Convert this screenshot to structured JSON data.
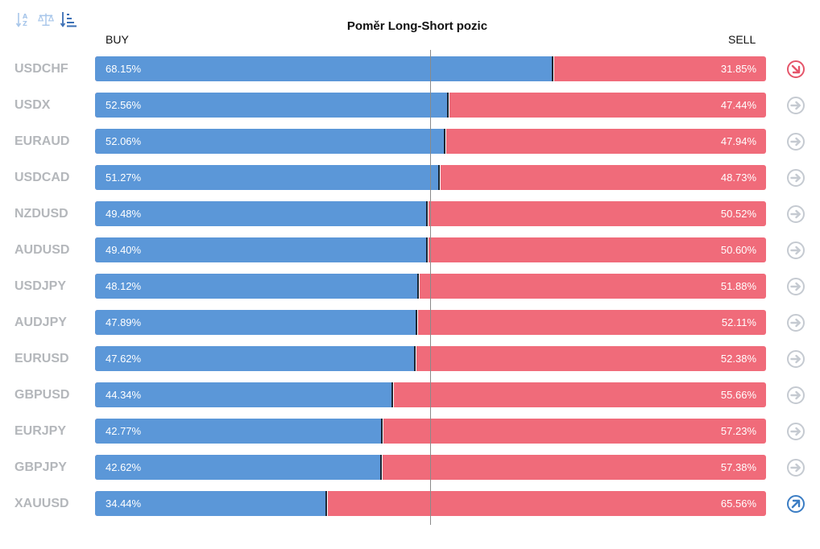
{
  "title": "Poměr Long-Short pozic",
  "labels": {
    "buy": "BUY",
    "sell": "SELL"
  },
  "toolbar": [
    {
      "name": "sort-alpha-icon"
    },
    {
      "name": "balance-icon"
    },
    {
      "name": "sort-amount-icon"
    }
  ],
  "colors": {
    "buy": "#5b97d8",
    "sell": "#f06b7a",
    "neutral": "#c5cad1",
    "down": "#e5556a",
    "up": "#3b7dc4"
  },
  "chart_data": {
    "type": "bar",
    "orientation": "horizontal",
    "stacked": true,
    "categories": [
      "USDCHF",
      "USDX",
      "EURAUD",
      "USDCAD",
      "NZDUSD",
      "AUDUSD",
      "USDJPY",
      "AUDJPY",
      "EURUSD",
      "GBPUSD",
      "EURJPY",
      "GBPJPY",
      "XAUUSD"
    ],
    "series": [
      {
        "name": "BUY",
        "values": [
          68.15,
          52.56,
          52.06,
          51.27,
          49.48,
          49.4,
          48.12,
          47.89,
          47.62,
          44.34,
          42.77,
          42.62,
          34.44
        ]
      },
      {
        "name": "SELL",
        "values": [
          31.85,
          47.44,
          47.94,
          48.73,
          50.52,
          50.6,
          51.88,
          52.11,
          52.38,
          55.66,
          57.23,
          57.38,
          65.56
        ]
      }
    ],
    "buy_labels": [
      "68.15%",
      "52.56%",
      "52.06%",
      "51.27%",
      "49.48%",
      "49.40%",
      "48.12%",
      "47.89%",
      "47.62%",
      "44.34%",
      "42.77%",
      "42.62%",
      "34.44%"
    ],
    "sell_labels": [
      "31.85%",
      "47.44%",
      "47.94%",
      "48.73%",
      "50.52%",
      "50.60%",
      "51.88%",
      "52.11%",
      "52.38%",
      "55.66%",
      "57.23%",
      "57.38%",
      "65.56%"
    ],
    "trend_icons": [
      "arrow-down-right-icon",
      "arrow-right-icon",
      "arrow-right-icon",
      "arrow-right-icon",
      "arrow-right-icon",
      "arrow-right-icon",
      "arrow-right-icon",
      "arrow-right-icon",
      "arrow-right-icon",
      "arrow-right-icon",
      "arrow-right-icon",
      "arrow-right-icon",
      "arrow-up-right-icon"
    ],
    "xlim": [
      0,
      100
    ],
    "reference_line": 50,
    "grid": false
  }
}
